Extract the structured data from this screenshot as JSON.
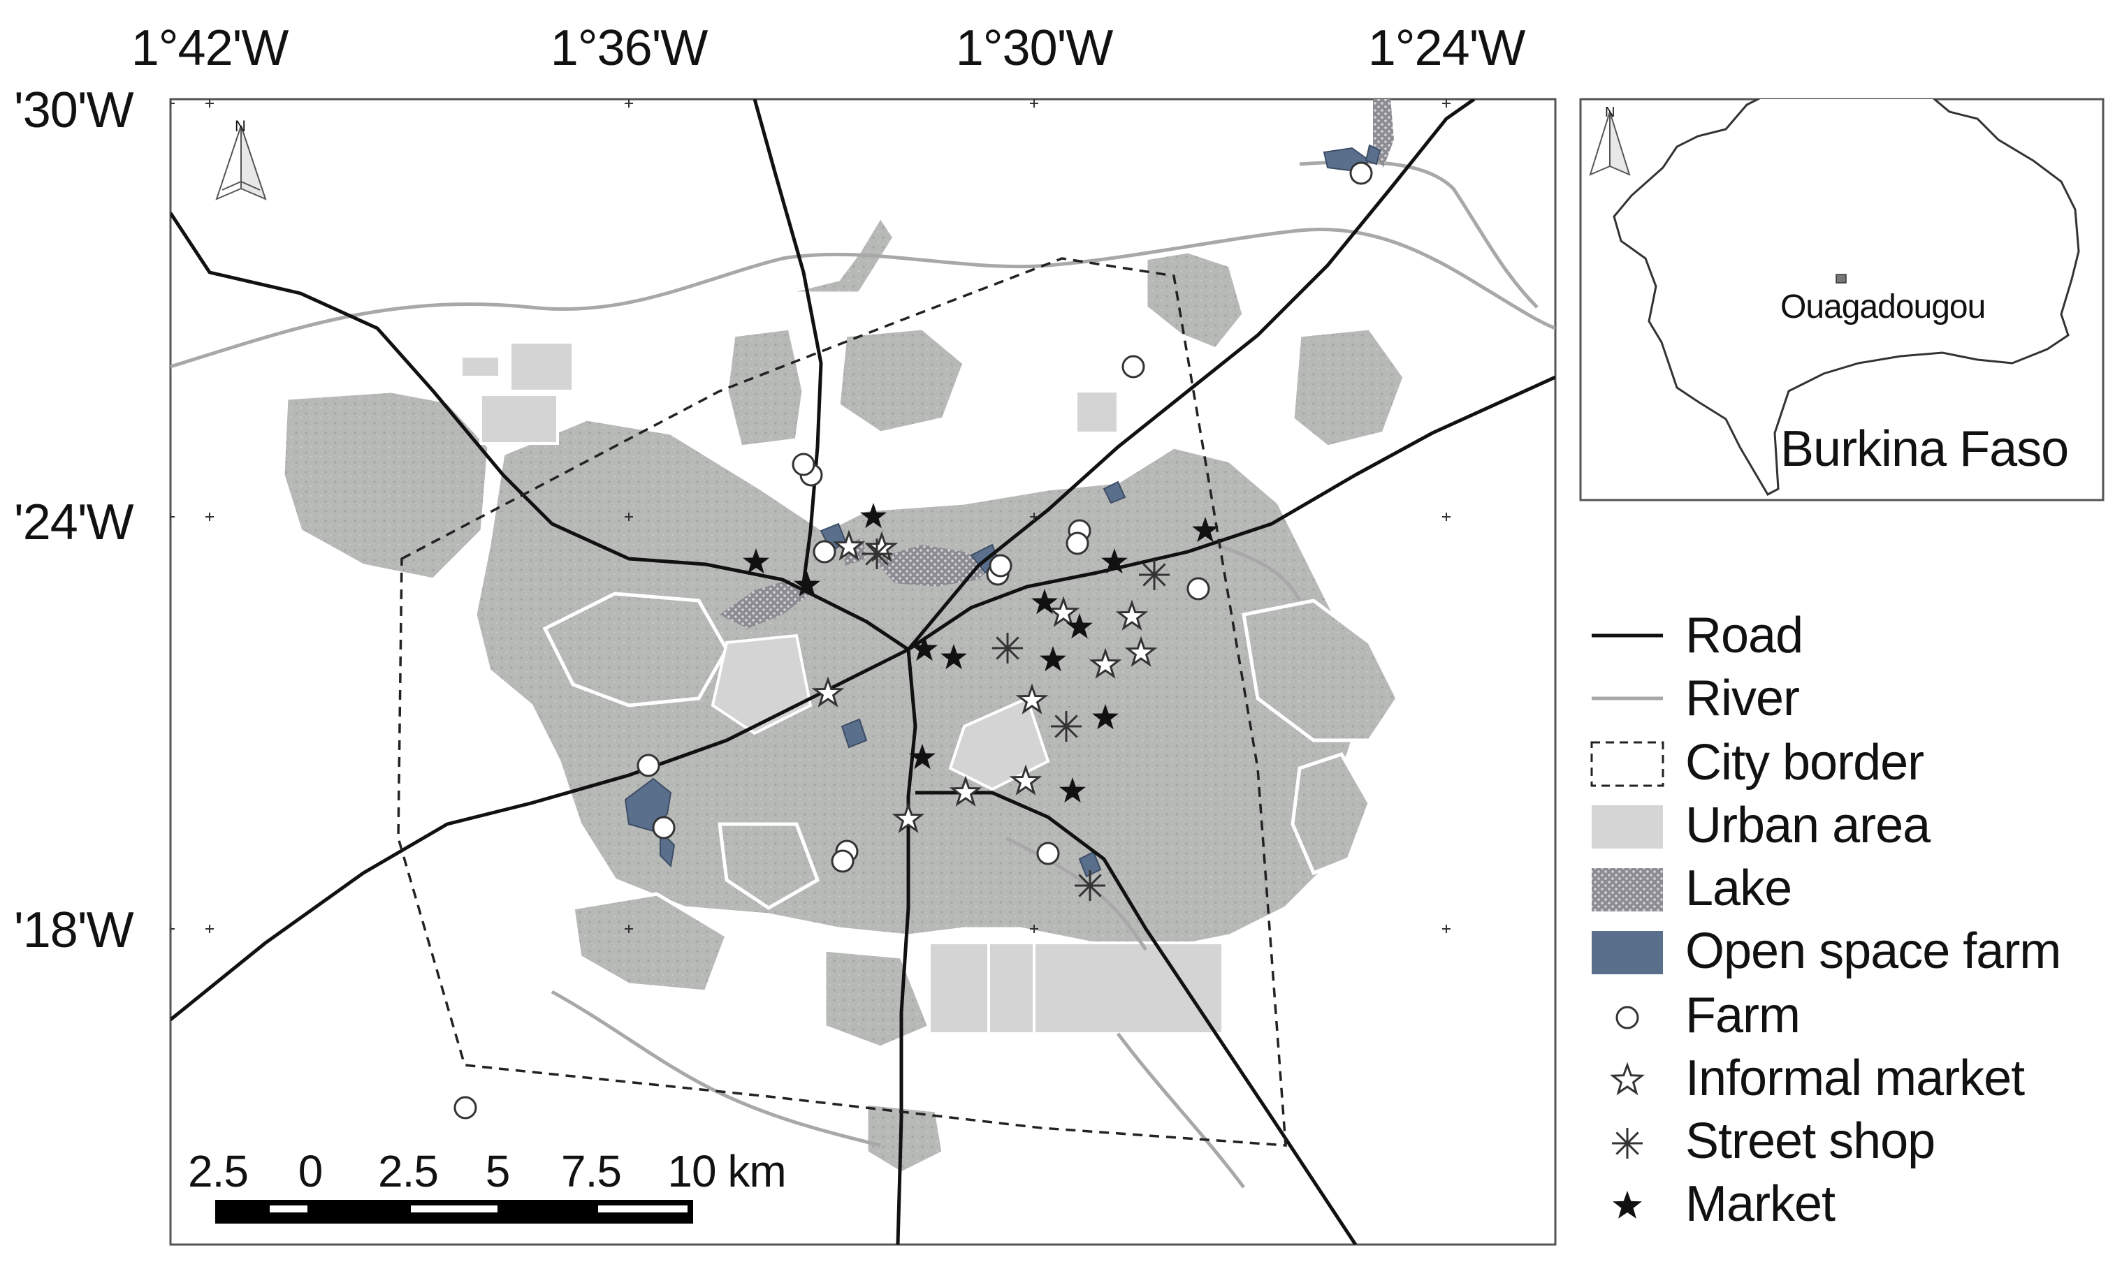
{
  "map": {
    "lon_ticks": [
      "1°42'W",
      "1°36'W",
      "1°30'W",
      "1°24'W"
    ],
    "lat_ticks": [
      "'30'W",
      "'24'W",
      "'18'W"
    ],
    "north_label": "N"
  },
  "inset": {
    "city_label": "Ouagadougou",
    "country_label": "Burkina Faso",
    "north_label": "N"
  },
  "scale_bar": {
    "labels": [
      "2.5",
      "0",
      "2.5",
      "5",
      "7.5",
      "10 km"
    ]
  },
  "legend": [
    {
      "symbol": "road",
      "label": "Road"
    },
    {
      "symbol": "river",
      "label": "River"
    },
    {
      "symbol": "city-border",
      "label": "City border"
    },
    {
      "symbol": "urban-area",
      "label": "Urban area"
    },
    {
      "symbol": "lake",
      "label": "Lake"
    },
    {
      "symbol": "open-space-farm",
      "label": "Open space farm"
    },
    {
      "symbol": "farm",
      "label": "Farm"
    },
    {
      "symbol": "informal-market",
      "label": "Informal market"
    },
    {
      "symbol": "street-shop",
      "label": "Street shop"
    },
    {
      "symbol": "market",
      "label": "Market"
    }
  ],
  "colors": {
    "urban": "#b9bbb9",
    "urban_light": "#d4d5d4",
    "lake": "#8f8f95",
    "open_space_farm": "#5a6f8c",
    "road": "#111111",
    "river": "#a8a8a8"
  },
  "features": {
    "farms": [
      [
        1161,
        680
      ],
      [
        1948,
        248
      ],
      [
        1622,
        525
      ],
      [
        1150,
        665
      ],
      [
        1180,
        790
      ],
      [
        1545,
        760
      ],
      [
        1428,
        822
      ],
      [
        1432,
        810
      ],
      [
        1542,
        778
      ],
      [
        1715,
        843
      ],
      [
        1212,
        1219
      ],
      [
        1206,
        1233
      ],
      [
        928,
        1096
      ],
      [
        950,
        1185
      ],
      [
        1500,
        1222
      ],
      [
        666,
        1586
      ]
    ],
    "informal_markets": [
      [
        1215,
        783
      ],
      [
        1262,
        785
      ],
      [
        1185,
        993
      ],
      [
        1522,
        878
      ],
      [
        1620,
        883
      ],
      [
        1633,
        935
      ],
      [
        1582,
        952
      ],
      [
        1477,
        1003
      ],
      [
        1468,
        1119
      ],
      [
        1382,
        1135
      ],
      [
        1300,
        1173
      ]
    ],
    "street_shops": [
      [
        1255,
        793
      ],
      [
        1652,
        823
      ],
      [
        1442,
        928
      ],
      [
        1526,
        1040
      ],
      [
        1560,
        1268
      ]
    ],
    "markets": [
      [
        1250,
        740
      ],
      [
        1082,
        805
      ],
      [
        1155,
        838
      ],
      [
        1323,
        930
      ],
      [
        1365,
        942
      ],
      [
        1495,
        863
      ],
      [
        1545,
        898
      ],
      [
        1507,
        945
      ],
      [
        1595,
        805
      ],
      [
        1725,
        760
      ],
      [
        1582,
        1028
      ],
      [
        1320,
        1085
      ],
      [
        1535,
        1133
      ]
    ]
  }
}
